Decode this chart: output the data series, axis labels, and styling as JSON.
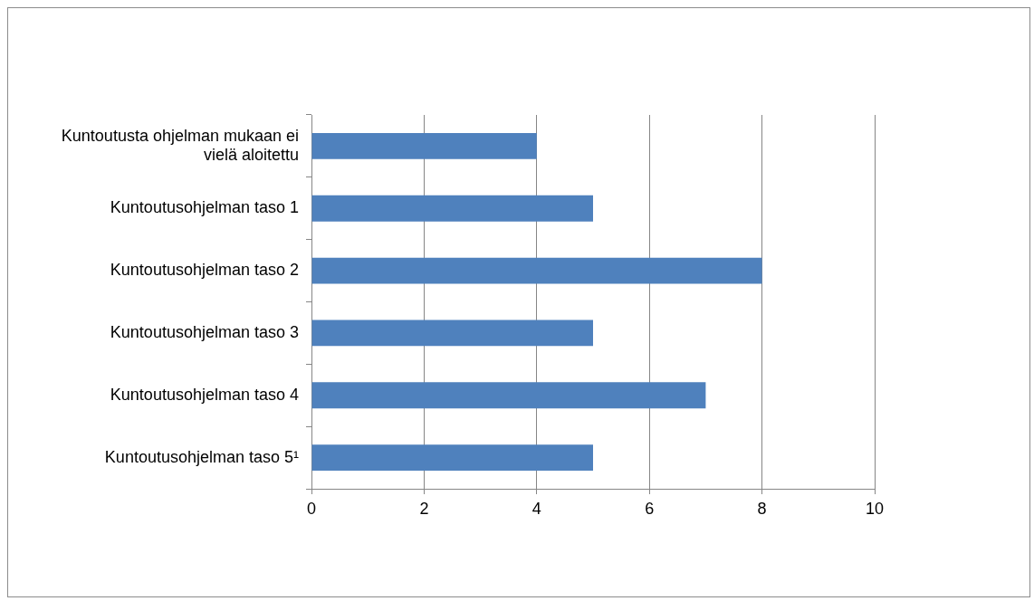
{
  "chart_data": {
    "type": "bar",
    "orientation": "horizontal",
    "categories": [
      "Kuntoutusta ohjelman mukaan ei vielä aloitettu",
      "Kuntoutusohjelman taso 1",
      "Kuntoutusohjelman taso 2",
      "Kuntoutusohjelman taso 3",
      "Kuntoutusohjelman taso 4",
      "Kuntoutusohjelman taso 5¹"
    ],
    "values": [
      4,
      5,
      8,
      5,
      7,
      5
    ],
    "color": "#4f81bd",
    "xlim": [
      0,
      10
    ],
    "xticks": [
      0,
      2,
      4,
      6,
      8,
      10
    ],
    "grid": "x",
    "legend": false
  }
}
